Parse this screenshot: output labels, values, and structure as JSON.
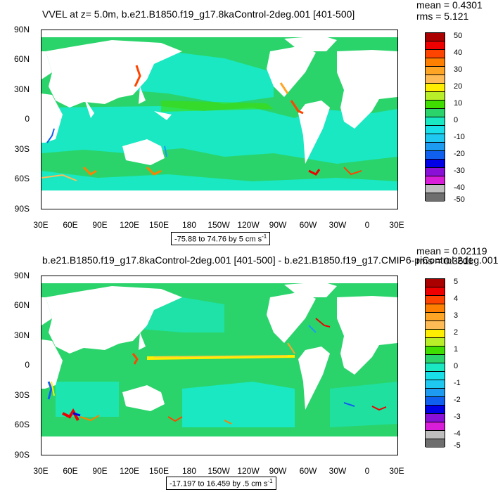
{
  "top": {
    "title": "VVEL at z=   5.0m, b.e21.B1850.f19_g17.8kaControl-2deg.001 [401-500]",
    "mean": "mean = 0.4301",
    "rms": "rms = 5.121",
    "range_label": "-75.88 to 74.76 by 5 cm s",
    "range_sup": "-1",
    "lat_labels": [
      "90N",
      "60N",
      "30N",
      "0",
      "30S",
      "60S",
      "90S"
    ],
    "lon_labels": [
      "30E",
      "60E",
      "90E",
      "120E",
      "150E",
      "180",
      "150W",
      "120W",
      "90W",
      "60W",
      "30W",
      "0",
      "30E"
    ],
    "colorbar_labels": [
      "50",
      "40",
      "30",
      "20",
      "10",
      "0",
      "-10",
      "-20",
      "-30",
      "-40",
      "-50"
    ]
  },
  "bottom": {
    "title": "b.e21.B1850.f19_g17.8kaControl-2deg.001 [401-500] - b.e21.B1850.f19_g17.CMIP6-piControl-2deg.001",
    "mean": "mean = 0.02119",
    "rms": "rms = 0.3611",
    "range_label": "-17.197 to 16.459 by .5 cm s",
    "range_sup": "-1",
    "lat_labels": [
      "90N",
      "60N",
      "30N",
      "0",
      "30S",
      "60S",
      "90S"
    ],
    "lon_labels": [
      "30E",
      "60E",
      "90E",
      "120E",
      "150E",
      "180",
      "150W",
      "120W",
      "90W",
      "60W",
      "30W",
      "0",
      "30E"
    ],
    "colorbar_labels": [
      "5",
      "4",
      "3",
      "2",
      "1",
      "0",
      "-1",
      "-2",
      "-3",
      "-4",
      "-5"
    ]
  },
  "colors": {
    "ocean_base": "#2ad46b",
    "ocean_cyan": "#19e8c2",
    "land": "#ffffff",
    "colorbar": [
      "#aa0000",
      "#ee0000",
      "#ff4400",
      "#ff7f00",
      "#ffa526",
      "#ffbb55",
      "#ffee00",
      "#b8ef28",
      "#3fdd00",
      "#2ad46b",
      "#19e8c2",
      "#19e0e8",
      "#1ec8f0",
      "#1c9bf0",
      "#1060f0",
      "#0000e6",
      "#8a10d8",
      "#d81ed8",
      "#bebebe",
      "#6e6e6e"
    ]
  }
}
